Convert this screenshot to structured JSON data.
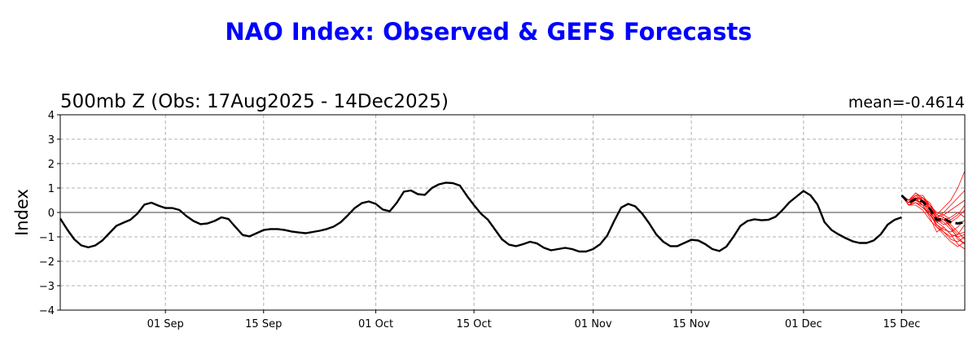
{
  "title": "NAO Index: Observed & GEFS Forecasts",
  "subtitle": "500mb Z (Obs: 17Aug2025 - 14Dec2025)",
  "mean_text": "mean=-0.4614",
  "colors": {
    "title": "#0000ff",
    "observed": "#000000",
    "ensemble": "#ff0000",
    "ensemble_mean": "#000000",
    "grid": "#b0b0b0"
  },
  "chart_data": {
    "type": "line",
    "title": "NAO Index: Observed & GEFS Forecasts",
    "subtitle": "500mb Z (Obs: 17Aug2025 - 14Dec2025)",
    "ylabel": "Index",
    "xlabel": "",
    "ylim": [
      -4,
      4
    ],
    "xlim": [
      "2025-08-17",
      "2025-12-24"
    ],
    "grid": true,
    "yticks": [
      -4,
      -3,
      -2,
      -1,
      0,
      1,
      2,
      3,
      4
    ],
    "ytick_labels": [
      "−4",
      "−3",
      "−2",
      "−1",
      "0",
      "1",
      "2",
      "3",
      "4"
    ],
    "xticks": [
      {
        "date": "2025-09-01",
        "label": "01 Sep"
      },
      {
        "date": "2025-09-15",
        "label": "15 Sep"
      },
      {
        "date": "2025-10-01",
        "label": "01 Oct"
      },
      {
        "date": "2025-10-15",
        "label": "15 Oct"
      },
      {
        "date": "2025-11-01",
        "label": "01 Nov"
      },
      {
        "date": "2025-11-15",
        "label": "15 Nov"
      },
      {
        "date": "2025-12-01",
        "label": "01 Dec"
      },
      {
        "date": "2025-12-15",
        "label": "15 Dec"
      }
    ],
    "observed": {
      "dates": [
        "2025-08-17",
        "2025-08-18",
        "2025-08-19",
        "2025-08-20",
        "2025-08-21",
        "2025-08-22",
        "2025-08-23",
        "2025-08-24",
        "2025-08-25",
        "2025-08-26",
        "2025-08-27",
        "2025-08-28",
        "2025-08-29",
        "2025-08-30",
        "2025-08-31",
        "2025-09-01",
        "2025-09-02",
        "2025-09-03",
        "2025-09-04",
        "2025-09-05",
        "2025-09-06",
        "2025-09-07",
        "2025-09-08",
        "2025-09-09",
        "2025-09-10",
        "2025-09-11",
        "2025-09-12",
        "2025-09-13",
        "2025-09-14",
        "2025-09-15",
        "2025-09-16",
        "2025-09-17",
        "2025-09-18",
        "2025-09-19",
        "2025-09-20",
        "2025-09-21",
        "2025-09-22",
        "2025-09-23",
        "2025-09-24",
        "2025-09-25",
        "2025-09-26",
        "2025-09-27",
        "2025-09-28",
        "2025-09-29",
        "2025-09-30",
        "2025-10-01",
        "2025-10-02",
        "2025-10-03",
        "2025-10-04",
        "2025-10-05",
        "2025-10-06",
        "2025-10-07",
        "2025-10-08",
        "2025-10-09",
        "2025-10-10",
        "2025-10-11",
        "2025-10-12",
        "2025-10-13",
        "2025-10-14",
        "2025-10-15",
        "2025-10-16",
        "2025-10-17",
        "2025-10-18",
        "2025-10-19",
        "2025-10-20",
        "2025-10-21",
        "2025-10-22",
        "2025-10-23",
        "2025-10-24",
        "2025-10-25",
        "2025-10-26",
        "2025-10-27",
        "2025-10-28",
        "2025-10-29",
        "2025-10-30",
        "2025-10-31",
        "2025-11-01",
        "2025-11-02",
        "2025-11-03",
        "2025-11-04",
        "2025-11-05",
        "2025-11-06",
        "2025-11-07",
        "2025-11-08",
        "2025-11-09",
        "2025-11-10",
        "2025-11-11",
        "2025-11-12",
        "2025-11-13",
        "2025-11-14",
        "2025-11-15",
        "2025-11-16",
        "2025-11-17",
        "2025-11-18",
        "2025-11-19",
        "2025-11-20",
        "2025-11-21",
        "2025-11-22",
        "2025-11-23",
        "2025-11-24",
        "2025-11-25",
        "2025-11-26",
        "2025-11-27",
        "2025-11-28",
        "2025-11-29",
        "2025-11-30",
        "2025-12-01",
        "2025-12-02",
        "2025-12-03",
        "2025-12-04",
        "2025-12-05",
        "2025-12-06",
        "2025-12-07",
        "2025-12-08",
        "2025-12-09",
        "2025-12-10",
        "2025-12-11",
        "2025-12-12",
        "2025-12-13",
        "2025-12-14",
        "2025-12-15"
      ],
      "values": [
        -0.25,
        -0.7,
        -1.1,
        -1.35,
        -1.43,
        -1.35,
        -1.15,
        -0.85,
        -0.55,
        -0.42,
        -0.3,
        -0.05,
        0.32,
        0.4,
        0.28,
        0.18,
        0.18,
        0.1,
        -0.15,
        -0.35,
        -0.48,
        -0.45,
        -0.35,
        -0.2,
        -0.27,
        -0.6,
        -0.92,
        -0.98,
        -0.85,
        -0.72,
        -0.68,
        -0.68,
        -0.72,
        -0.78,
        -0.82,
        -0.85,
        -0.8,
        -0.75,
        -0.68,
        -0.58,
        -0.4,
        -0.12,
        0.18,
        0.38,
        0.45,
        0.35,
        0.12,
        0.05,
        0.4,
        0.85,
        0.9,
        0.75,
        0.72,
        1.0,
        1.15,
        1.22,
        1.2,
        1.1,
        0.68,
        0.3,
        -0.05,
        -0.3,
        -0.7,
        -1.1,
        -1.32,
        -1.38,
        -1.3,
        -1.2,
        -1.27,
        -1.45,
        -1.55,
        -1.5,
        -1.45,
        -1.5,
        -1.6,
        -1.6,
        -1.5,
        -1.3,
        -0.95,
        -0.35,
        0.2,
        0.35,
        0.25,
        -0.05,
        -0.45,
        -0.9,
        -1.2,
        -1.38,
        -1.38,
        -1.25,
        -1.12,
        -1.15,
        -1.3,
        -1.5,
        -1.58,
        -1.4,
        -1.0,
        -0.55,
        -0.35,
        -0.28,
        -0.32,
        -0.3,
        -0.18,
        0.1,
        0.42,
        0.65,
        0.88,
        0.7,
        0.32,
        -0.4,
        -0.72,
        -0.9,
        -1.05,
        -1.18,
        -1.25,
        -1.25,
        -1.15,
        -0.9,
        -0.5,
        -0.3,
        -0.2
      ]
    },
    "ensemble_mean": {
      "dates": [
        "2025-12-15",
        "2025-12-16",
        "2025-12-17",
        "2025-12-18",
        "2025-12-19",
        "2025-12-20",
        "2025-12-21",
        "2025-12-22",
        "2025-12-23",
        "2025-12-24"
      ],
      "values": [
        0.7,
        0.4,
        0.55,
        0.45,
        0.15,
        -0.3,
        -0.25,
        -0.4,
        -0.45,
        -0.4
      ]
    },
    "ensemble_members": {
      "dates": [
        "2025-12-15",
        "2025-12-16",
        "2025-12-17",
        "2025-12-18",
        "2025-12-19",
        "2025-12-20",
        "2025-12-21",
        "2025-12-22",
        "2025-12-23",
        "2025-12-24"
      ],
      "members": [
        [
          0.7,
          0.5,
          0.8,
          0.6,
          0.3,
          -0.1,
          0.2,
          0.5,
          1.0,
          1.7
        ],
        [
          0.7,
          0.3,
          0.4,
          0.2,
          -0.1,
          -0.5,
          -0.8,
          -1.0,
          -0.9,
          -0.5
        ],
        [
          0.7,
          0.5,
          0.7,
          0.5,
          0.1,
          -0.4,
          -0.3,
          -0.6,
          -1.1,
          -1.3
        ],
        [
          0.7,
          0.4,
          0.6,
          0.3,
          0.2,
          -0.2,
          0.0,
          0.3,
          0.6,
          0.9
        ],
        [
          0.7,
          0.3,
          0.3,
          0.1,
          -0.3,
          -0.6,
          -0.9,
          -1.2,
          -1.4,
          -1.2
        ],
        [
          0.7,
          0.4,
          0.5,
          0.4,
          0.0,
          -0.3,
          -0.5,
          -0.4,
          -0.2,
          0.1
        ],
        [
          0.7,
          0.5,
          0.6,
          0.6,
          0.4,
          -0.1,
          -0.2,
          -0.6,
          -0.9,
          -0.8
        ],
        [
          0.7,
          0.3,
          0.5,
          0.3,
          -0.2,
          -0.8,
          -0.6,
          -0.9,
          -1.3,
          -1.5
        ],
        [
          0.7,
          0.4,
          0.7,
          0.7,
          0.3,
          -0.2,
          -0.1,
          0.1,
          0.3,
          0.5
        ],
        [
          0.7,
          0.3,
          0.4,
          0.2,
          0.0,
          -0.5,
          -0.7,
          -0.8,
          -0.6,
          -0.3
        ],
        [
          0.7,
          0.4,
          0.6,
          0.5,
          0.2,
          -0.3,
          -0.4,
          -0.7,
          -1.0,
          -0.9
        ],
        [
          0.7,
          0.5,
          0.8,
          0.5,
          0.1,
          -0.4,
          -0.2,
          -0.5,
          -0.8,
          -1.1
        ],
        [
          0.7,
          0.3,
          0.5,
          0.4,
          0.0,
          -0.6,
          -0.8,
          -1.1,
          -1.2,
          -1.0
        ],
        [
          0.7,
          0.4,
          0.6,
          0.5,
          0.3,
          0.0,
          -0.1,
          -0.3,
          -0.1,
          0.3
        ],
        [
          0.7,
          0.3,
          0.4,
          0.3,
          -0.1,
          -0.4,
          -0.6,
          -0.9,
          -1.0,
          -1.3
        ],
        [
          0.7,
          0.4,
          0.5,
          0.6,
          0.2,
          -0.2,
          -0.3,
          -0.2,
          0.0,
          -0.2
        ]
      ]
    }
  }
}
